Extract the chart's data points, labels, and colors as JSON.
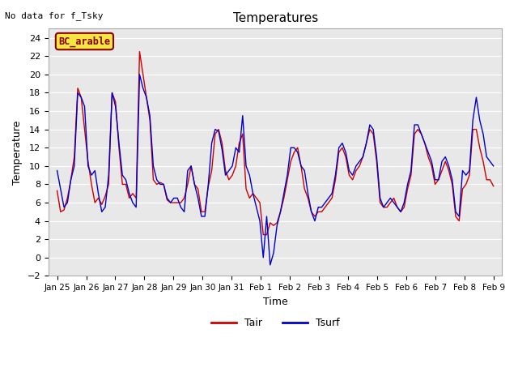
{
  "title": "Temperatures",
  "xlabel": "Time",
  "ylabel": "Temperature",
  "top_left_text": "No data for f_Tsky",
  "box_label": "BC_arable",
  "ylim": [
    -2,
    25
  ],
  "yticks": [
    -2,
    0,
    2,
    4,
    6,
    8,
    10,
    12,
    14,
    16,
    18,
    20,
    22,
    24
  ],
  "x_tick_labels": [
    "Jan 25",
    "Jan 26",
    "Jan 27",
    "Jan 28",
    "Jan 29",
    "Jan 30",
    "Jan 31",
    "Feb 1",
    "Feb 2",
    "Feb 3",
    "Feb 4",
    "Feb 5",
    "Feb 6",
    "Feb 7",
    "Feb 8",
    "Feb 9"
  ],
  "background_color": "#e8e8e8",
  "line_color_tair": "#cc0000",
  "line_color_tsurf": "#0000cc",
  "legend_tair": "Tair",
  "legend_tsurf": "Tsurf",
  "Tair": [
    7.3,
    5.0,
    5.2,
    6.5,
    8.5,
    11.0,
    18.5,
    17.5,
    14.0,
    10.5,
    8.0,
    6.0,
    6.5,
    5.8,
    6.7,
    8.0,
    18.0,
    17.0,
    12.0,
    8.0,
    8.0,
    6.5,
    7.0,
    6.5,
    22.5,
    20.0,
    17.5,
    15.0,
    8.5,
    8.0,
    8.2,
    8.0,
    6.3,
    6.0,
    6.0,
    6.0,
    6.0,
    6.5,
    8.0,
    10.0,
    8.0,
    7.5,
    5.0,
    5.0,
    7.8,
    9.5,
    13.5,
    14.0,
    12.5,
    9.5,
    8.5,
    9.0,
    10.0,
    12.5,
    13.5,
    7.5,
    6.5,
    7.0,
    6.5,
    6.0,
    2.5,
    2.5,
    3.8,
    3.5,
    3.8,
    5.0,
    6.5,
    8.5,
    10.5,
    11.5,
    12.0,
    10.0,
    7.5,
    6.5,
    5.0,
    4.5,
    5.0,
    5.0,
    5.5,
    6.0,
    6.5,
    8.5,
    11.5,
    12.0,
    11.0,
    9.0,
    8.5,
    9.5,
    10.0,
    11.0,
    12.5,
    14.0,
    13.5,
    10.5,
    6.0,
    5.5,
    5.5,
    6.0,
    6.5,
    5.5,
    5.0,
    5.5,
    7.5,
    9.0,
    13.5,
    14.0,
    13.5,
    12.5,
    11.0,
    10.0,
    8.0,
    8.5,
    9.5,
    10.5,
    9.5,
    8.0,
    4.5,
    4.0,
    7.5,
    8.0,
    9.0,
    14.0,
    14.0,
    12.0,
    10.5,
    8.5,
    8.5,
    7.8
  ],
  "Tsurf": [
    9.5,
    7.5,
    5.5,
    6.0,
    8.5,
    10.0,
    18.0,
    17.5,
    16.5,
    10.0,
    9.0,
    9.5,
    7.0,
    5.0,
    5.5,
    9.0,
    18.0,
    16.5,
    12.5,
    9.0,
    8.5,
    7.0,
    6.0,
    5.5,
    20.0,
    18.5,
    17.5,
    15.5,
    10.0,
    8.5,
    8.0,
    8.0,
    6.5,
    6.0,
    6.5,
    6.5,
    5.5,
    5.0,
    9.5,
    10.0,
    8.0,
    6.5,
    4.5,
    4.5,
    8.0,
    12.5,
    14.0,
    13.8,
    11.8,
    9.0,
    9.5,
    10.0,
    12.0,
    11.5,
    15.5,
    10.0,
    9.0,
    7.0,
    5.5,
    4.0,
    0.0,
    4.5,
    -0.8,
    0.5,
    3.5,
    5.0,
    7.0,
    9.0,
    12.0,
    12.0,
    11.5,
    10.0,
    9.5,
    7.0,
    5.0,
    4.0,
    5.5,
    5.5,
    6.0,
    6.5,
    7.0,
    9.0,
    12.0,
    12.5,
    11.5,
    9.5,
    9.0,
    10.0,
    10.5,
    11.0,
    12.5,
    14.5,
    14.0,
    11.0,
    6.5,
    5.5,
    6.0,
    6.5,
    6.0,
    5.5,
    5.0,
    6.0,
    8.0,
    9.5,
    14.5,
    14.5,
    13.5,
    12.5,
    11.5,
    10.5,
    8.5,
    8.5,
    10.5,
    11.0,
    10.0,
    8.5,
    5.0,
    4.5,
    9.5,
    9.0,
    9.5,
    15.0,
    17.5,
    15.0,
    13.5,
    11.0,
    10.5,
    10.0
  ]
}
